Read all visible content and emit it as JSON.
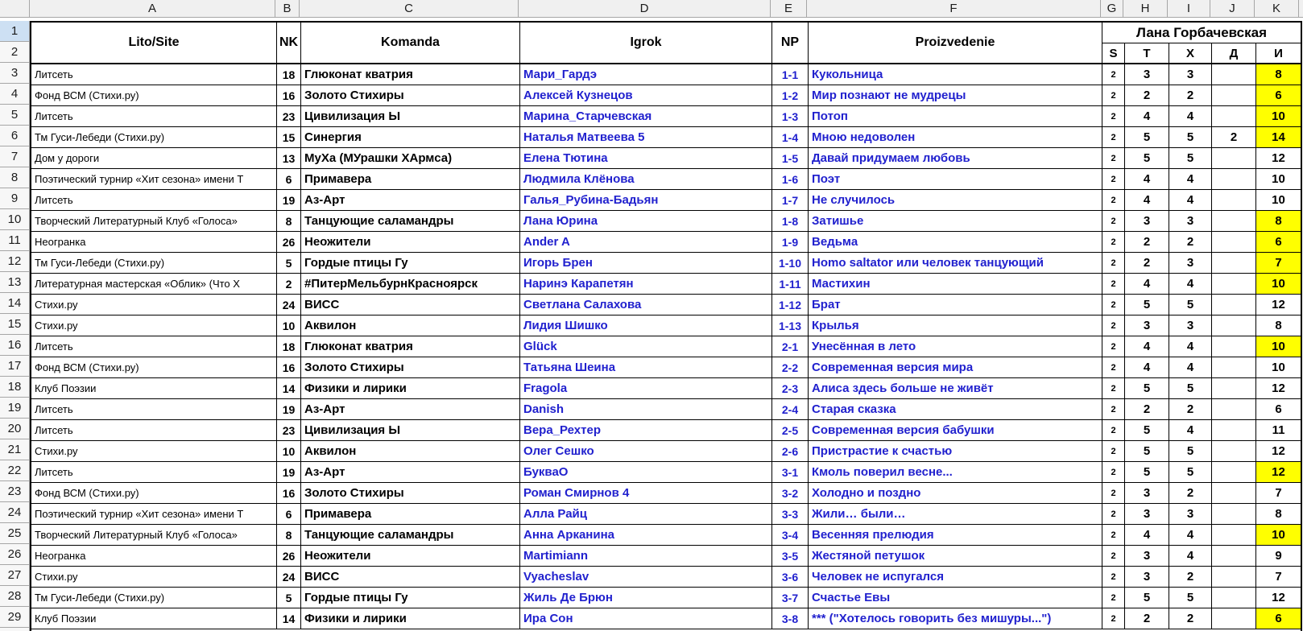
{
  "sheet": {
    "column_letters": [
      "A",
      "B",
      "C",
      "D",
      "E",
      "F",
      "G",
      "H",
      "I",
      "J",
      "K"
    ],
    "header_row_numbers": [
      1,
      2
    ],
    "headers": {
      "lito": "Lito/Site",
      "nk": "NK",
      "komanda": "Komanda",
      "igrok": "Igrok",
      "np": "NP",
      "proizvedenie": "Proizvedenie"
    },
    "judge_name": "Лана Горбачевская",
    "subheaders": [
      "S",
      "T",
      "X",
      "Д",
      "И"
    ],
    "colors": {
      "link_blue": "#2121CE",
      "highlight_yellow": "#FFFF00",
      "selected_row_header": "#CDE0F3"
    },
    "rows": [
      {
        "n": 3,
        "lito": "Литсеть",
        "nk": "18",
        "komanda": "Глюконат кватрия",
        "igrok": "Мари_Гардэ",
        "np": "1-1",
        "proizvedenie": "Кукольница",
        "s": "2",
        "t": "3",
        "x": "3",
        "d": "",
        "i": "8",
        "i_highlight": true
      },
      {
        "n": 4,
        "lito": "Фонд ВСМ (Стихи.ру)",
        "nk": "16",
        "komanda": "Золото Стихиры",
        "igrok": "Алексей Кузнецов",
        "np": "1-2",
        "proizvedenie": "Мир познают не мудрецы",
        "s": "2",
        "t": "2",
        "x": "2",
        "d": "",
        "i": "6",
        "i_highlight": true
      },
      {
        "n": 5,
        "lito": "Литсеть",
        "nk": "23",
        "komanda": "Цивилизация Ы",
        "igrok": "Марина_Старчевская",
        "np": "1-3",
        "proizvedenie": "Потоп",
        "s": "2",
        "t": "4",
        "x": "4",
        "d": "",
        "i": "10",
        "i_highlight": true
      },
      {
        "n": 6,
        "lito": "Тм Гуси-Лебеди (Стихи.ру)",
        "nk": "15",
        "komanda": "Синергия",
        "igrok": "Наталья Матвеева 5",
        "np": "1-4",
        "proizvedenie": "Мною недоволен",
        "s": "2",
        "t": "5",
        "x": "5",
        "d": "2",
        "i": "14",
        "i_highlight": true
      },
      {
        "n": 7,
        "lito": "Дом у дороги",
        "nk": "13",
        "komanda": "МуХа (МУрашки ХАрмса)",
        "igrok": "Елена Тютина",
        "np": "1-5",
        "proizvedenie": "Давай придумаем любовь",
        "s": "2",
        "t": "5",
        "x": "5",
        "d": "",
        "i": "12",
        "i_highlight": false
      },
      {
        "n": 8,
        "lito": "Поэтический турнир «Хит сезона» имени Т",
        "nk": "6",
        "komanda": "Примавера",
        "igrok": "Людмила Клёнова",
        "np": "1-6",
        "proizvedenie": "Поэт",
        "s": "2",
        "t": "4",
        "x": "4",
        "d": "",
        "i": "10",
        "i_highlight": false
      },
      {
        "n": 9,
        "lito": "Литсеть",
        "nk": "19",
        "komanda": "Аз-Арт",
        "igrok": "Галья_Рубина-Бадьян",
        "np": "1-7",
        "proizvedenie": "Не случилось",
        "s": "2",
        "t": "4",
        "x": "4",
        "d": "",
        "i": "10",
        "i_highlight": false
      },
      {
        "n": 10,
        "lito": "Творческий Литературный Клуб «Голоса»",
        "nk": "8",
        "komanda": "Танцующие саламандры",
        "igrok": "Лана Юрина",
        "np": "1-8",
        "proizvedenie": "Затишье",
        "s": "2",
        "t": "3",
        "x": "3",
        "d": "",
        "i": "8",
        "i_highlight": true
      },
      {
        "n": 11,
        "lito": "Неогранка",
        "nk": "26",
        "komanda": "Неожители",
        "igrok": "Ander A",
        "np": "1-9",
        "proizvedenie": "Ведьма",
        "s": "2",
        "t": "2",
        "x": "2",
        "d": "",
        "i": "6",
        "i_highlight": true
      },
      {
        "n": 12,
        "lito": "Тм Гуси-Лебеди (Стихи.ру)",
        "nk": "5",
        "komanda": "Гордые птицы Гу",
        "igrok": "Игорь Брен",
        "np": "1-10",
        "proizvedenie": "Homo saltator или человек танцующий",
        "s": "2",
        "t": "2",
        "x": "3",
        "d": "",
        "i": "7",
        "i_highlight": true
      },
      {
        "n": 13,
        "lito": "Литературная мастерская «Облик» (Что Х",
        "nk": "2",
        "komanda": "#ПитерМельбурнКрасноярск",
        "igrok": "Наринэ Карапетян",
        "np": "1-11",
        "proizvedenie": "Мастихин",
        "s": "2",
        "t": "4",
        "x": "4",
        "d": "",
        "i": "10",
        "i_highlight": true
      },
      {
        "n": 14,
        "lito": "Стихи.ру",
        "nk": "24",
        "komanda": "ВИСС",
        "igrok": "Светлана Салахова",
        "np": "1-12",
        "proizvedenie": "Брат",
        "s": "2",
        "t": "5",
        "x": "5",
        "d": "",
        "i": "12",
        "i_highlight": false
      },
      {
        "n": 15,
        "lito": "Стихи.ру",
        "nk": "10",
        "komanda": "Аквилон",
        "igrok": "Лидия Шишко",
        "np": "1-13",
        "proizvedenie": "Крылья",
        "s": "2",
        "t": "3",
        "x": "3",
        "d": "",
        "i": "8",
        "i_highlight": false
      },
      {
        "n": 16,
        "lito": "Литсеть",
        "nk": "18",
        "komanda": "Глюконат кватрия",
        "igrok": "Glück",
        "np": "2-1",
        "proizvedenie": "Унесённая в лето",
        "s": "2",
        "t": "4",
        "x": "4",
        "d": "",
        "i": "10",
        "i_highlight": true
      },
      {
        "n": 17,
        "lito": "Фонд ВСМ (Стихи.ру)",
        "nk": "16",
        "komanda": "Золото Стихиры",
        "igrok": "Татьяна Шеина",
        "np": "2-2",
        "proizvedenie": "Современная версия мира",
        "s": "2",
        "t": "4",
        "x": "4",
        "d": "",
        "i": "10",
        "i_highlight": false
      },
      {
        "n": 18,
        "lito": "Клуб Поэзии",
        "nk": "14",
        "komanda": "Физики и лирики",
        "igrok": "Fragola",
        "np": "2-3",
        "proizvedenie": "Алиса здесь больше не живёт",
        "s": "2",
        "t": "5",
        "x": "5",
        "d": "",
        "i": "12",
        "i_highlight": false
      },
      {
        "n": 19,
        "lito": "Литсеть",
        "nk": "19",
        "komanda": "Аз-Арт",
        "igrok": "Danish",
        "np": "2-4",
        "proizvedenie": "Старая сказка",
        "s": "2",
        "t": "2",
        "x": "2",
        "d": "",
        "i": "6",
        "i_highlight": false
      },
      {
        "n": 20,
        "lito": "Литсеть",
        "nk": "23",
        "komanda": "Цивилизация Ы",
        "igrok": "Вера_Рехтер",
        "np": "2-5",
        "proizvedenie": "Современная версия бабушки",
        "s": "2",
        "t": "5",
        "x": "4",
        "d": "",
        "i": "11",
        "i_highlight": false
      },
      {
        "n": 21,
        "lito": "Стихи.ру",
        "nk": "10",
        "komanda": "Аквилон",
        "igrok": "Олег Сешко",
        "np": "2-6",
        "proizvedenie": "Пристрастие к счастью",
        "s": "2",
        "t": "5",
        "x": "5",
        "d": "",
        "i": "12",
        "i_highlight": false
      },
      {
        "n": 22,
        "lito": "Литсеть",
        "nk": "19",
        "komanda": "Аз-Арт",
        "igrok": "БукваО",
        "np": "3-1",
        "proizvedenie": "Кмоль поверил весне...",
        "s": "2",
        "t": "5",
        "x": "5",
        "d": "",
        "i": "12",
        "i_highlight": true
      },
      {
        "n": 23,
        "lito": "Фонд ВСМ (Стихи.ру)",
        "nk": "16",
        "komanda": "Золото Стихиры",
        "igrok": "Роман Смирнов 4",
        "np": "3-2",
        "proizvedenie": "Холодно и поздно",
        "s": "2",
        "t": "3",
        "x": "2",
        "d": "",
        "i": "7",
        "i_highlight": false
      },
      {
        "n": 24,
        "lito": "Поэтический турнир «Хит сезона» имени Т",
        "nk": "6",
        "komanda": "Примавера",
        "igrok": "Алла Райц",
        "np": "3-3",
        "proizvedenie": "Жили… были…",
        "s": "2",
        "t": "3",
        "x": "3",
        "d": "",
        "i": "8",
        "i_highlight": false
      },
      {
        "n": 25,
        "lito": "Творческий Литературный Клуб «Голоса»",
        "nk": "8",
        "komanda": "Танцующие саламандры",
        "igrok": "Анна Арканина",
        "np": "3-4",
        "proizvedenie": "Весенняя прелюдия",
        "s": "2",
        "t": "4",
        "x": "4",
        "d": "",
        "i": "10",
        "i_highlight": true
      },
      {
        "n": 26,
        "lito": "Неогранка",
        "nk": "26",
        "komanda": "Неожители",
        "igrok": "Martimiann",
        "np": "3-5",
        "proizvedenie": "Жестяной петушок",
        "s": "2",
        "t": "3",
        "x": "4",
        "d": "",
        "i": "9",
        "i_highlight": false
      },
      {
        "n": 27,
        "lito": "Стихи.ру",
        "nk": "24",
        "komanda": "ВИСС",
        "igrok": "Vyacheslav",
        "np": "3-6",
        "proizvedenie": "Человек не испугался",
        "s": "2",
        "t": "3",
        "x": "2",
        "d": "",
        "i": "7",
        "i_highlight": false
      },
      {
        "n": 28,
        "lito": "Тм Гуси-Лебеди (Стихи.ру)",
        "nk": "5",
        "komanda": "Гордые птицы Гу",
        "igrok": "Жиль Де Брюн",
        "np": "3-7",
        "proizvedenie": "Счастье Евы",
        "s": "2",
        "t": "5",
        "x": "5",
        "d": "",
        "i": "12",
        "i_highlight": false
      },
      {
        "n": 29,
        "lito": "Клуб Поэзии",
        "nk": "14",
        "komanda": "Физики и лирики",
        "igrok": "Ира Сон",
        "np": "3-8",
        "proizvedenie": "*** (\"Хотелось говорить без мишуры...\")",
        "s": "2",
        "t": "2",
        "x": "2",
        "d": "",
        "i": "6",
        "i_highlight": true
      }
    ]
  }
}
